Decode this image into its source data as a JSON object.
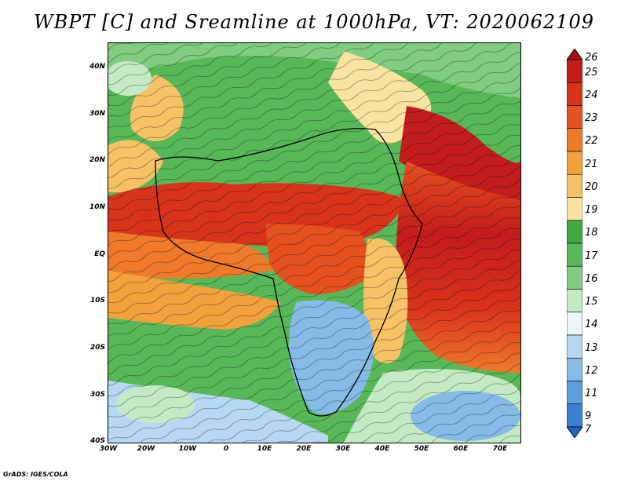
{
  "title": "WBPT [C] and Sreamline at 1000hPa, VT: 2020062109",
  "credit": "GrADS: IGES/COLA",
  "y_axis_labels": [
    "40N",
    "30N",
    "20N",
    "10N",
    "EQ",
    "10S",
    "20S",
    "30S",
    "40S"
  ],
  "x_axis_labels": [
    "30W",
    "20W",
    "10W",
    "0",
    "10E",
    "20E",
    "30E",
    "40E",
    "50E",
    "60E",
    "70E"
  ],
  "colorbar": {
    "levels": [
      "26",
      "25",
      "24",
      "23",
      "22",
      "21",
      "20",
      "19",
      "18",
      "17",
      "16",
      "15",
      "14",
      "13",
      "12",
      "11",
      "9",
      "7"
    ],
    "colors": [
      "#a50f15",
      "#c21c1c",
      "#d8341c",
      "#e5501f",
      "#ee7a2a",
      "#f3a13d",
      "#f6c266",
      "#f9e3a0",
      "#42a842",
      "#58b858",
      "#80cc80",
      "#c4eac4",
      "#e9f6fb",
      "#b6d8f2",
      "#86bbe8",
      "#5d9edc",
      "#3a7fd0",
      "#1f63c0"
    ]
  },
  "map": {
    "region": "Africa, Middle East and Indian Ocean",
    "field": "WBPT",
    "level": "1000hPa",
    "valid_time": "2020062109"
  }
}
